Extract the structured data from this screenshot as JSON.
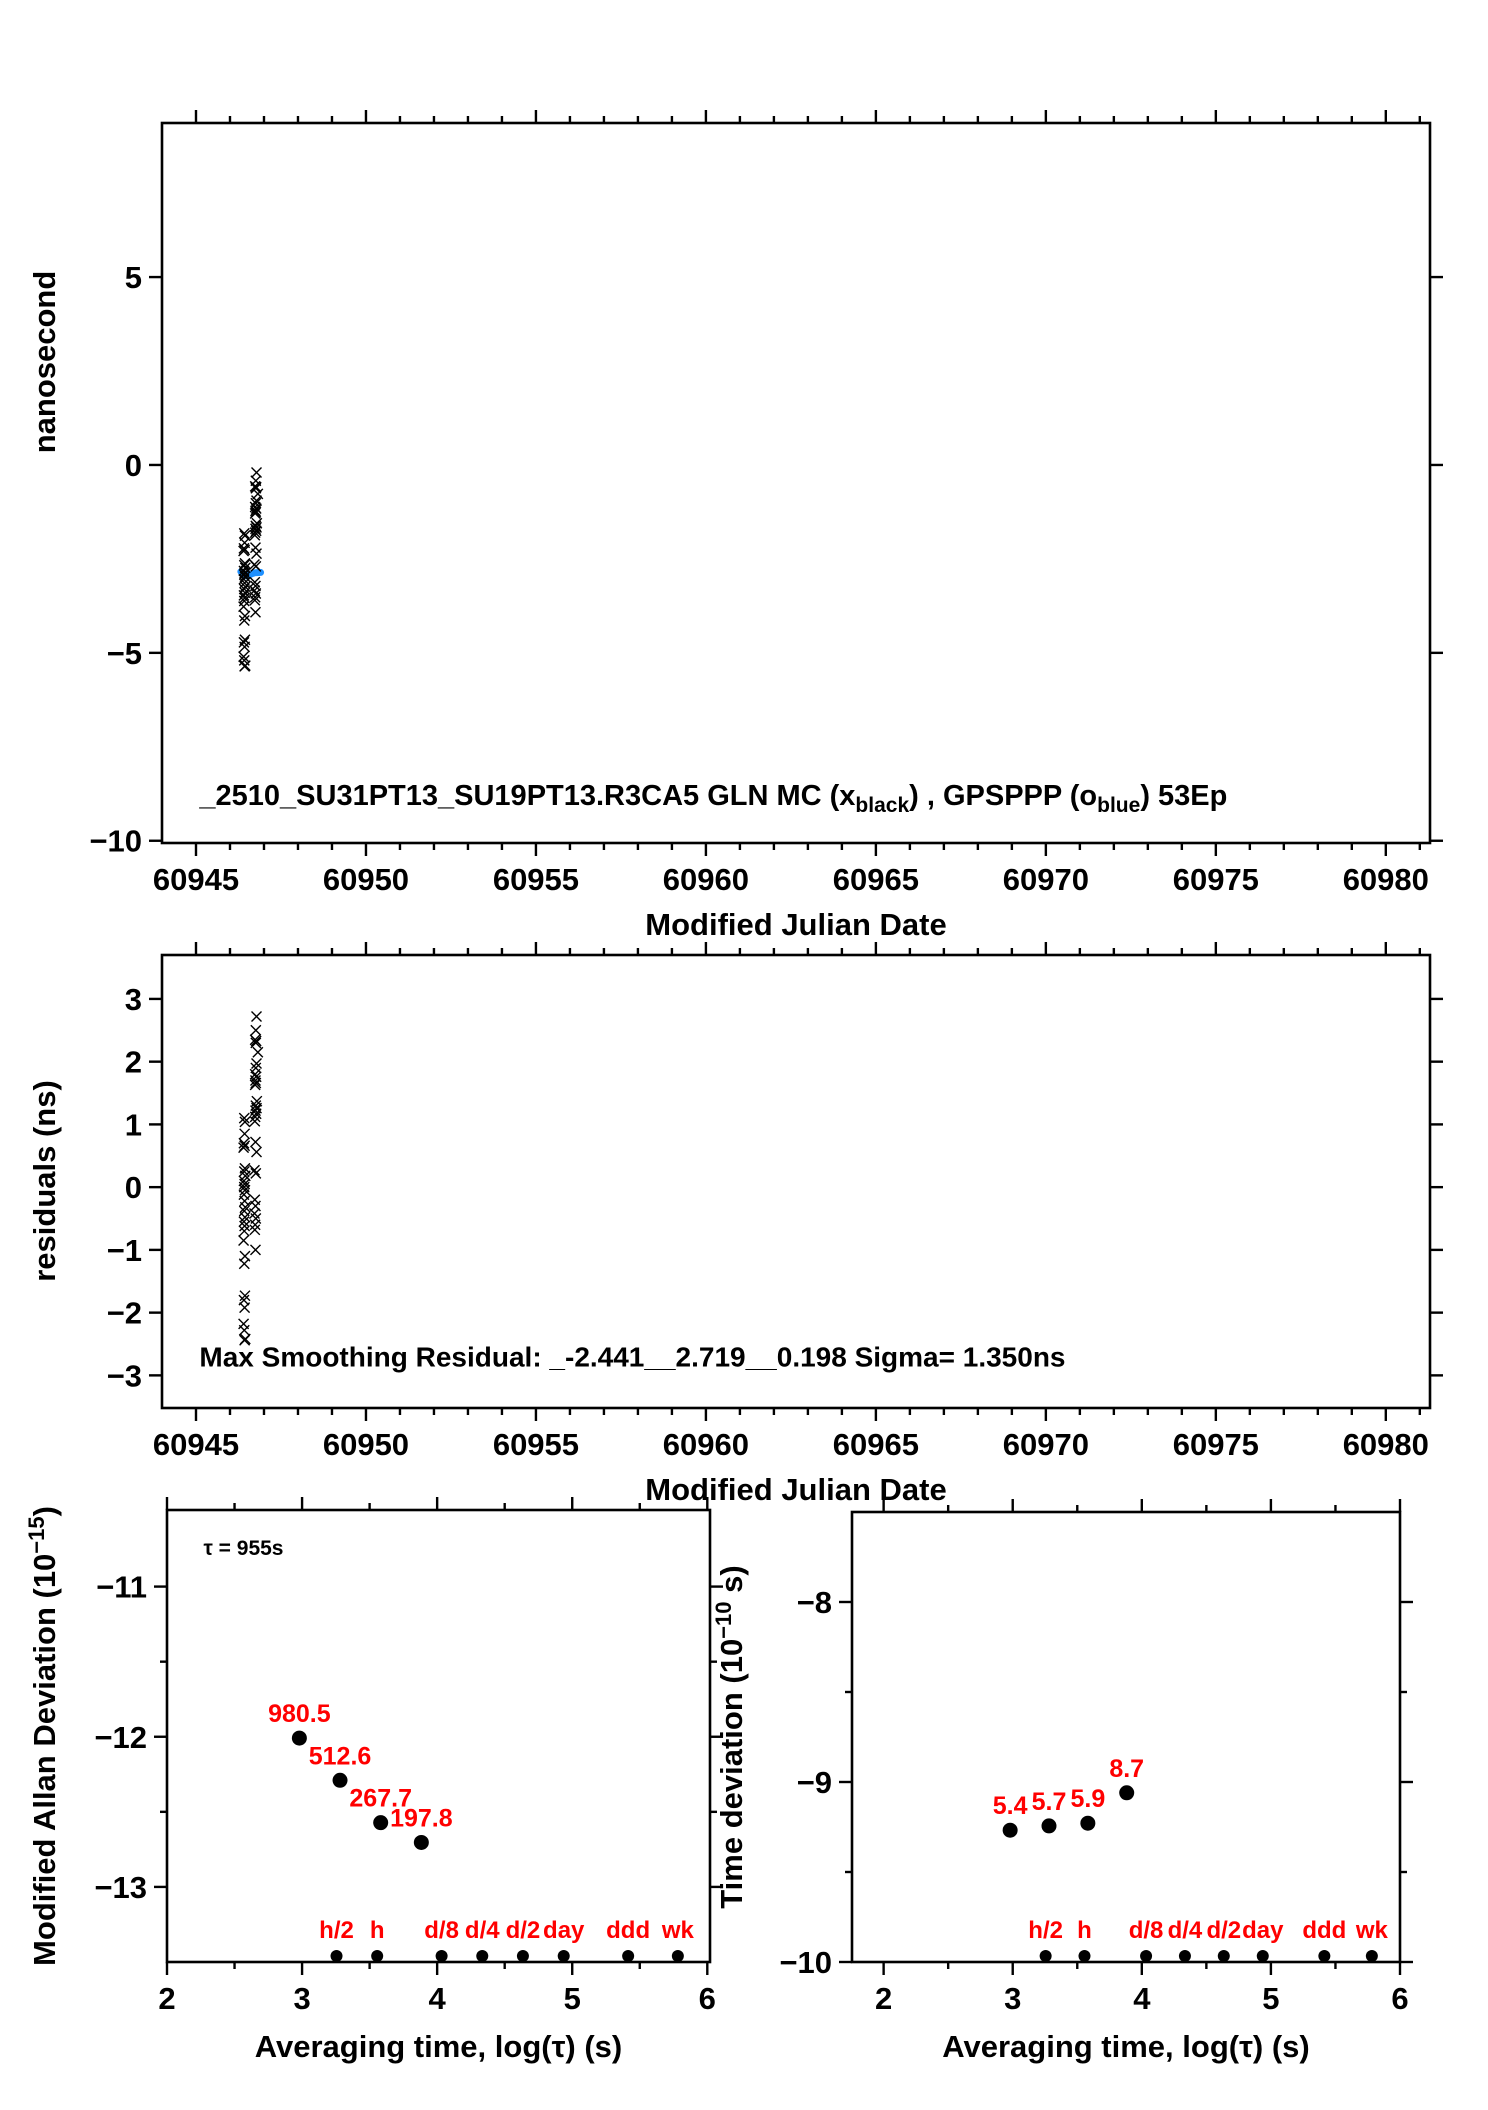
{
  "page": {
    "background": "#ffffff"
  },
  "colors": {
    "marker": "#000000",
    "smooth": "#1E90FF",
    "red": "#FF0000",
    "axis": "#000000"
  },
  "chart_data": [
    {
      "id": "phase",
      "type": "scatter",
      "marker": "x",
      "xlabel": "Modified Julian Date",
      "ylabel_parts": [
        {
          "t": "nanosecond"
        }
      ],
      "xlim": [
        60944.0,
        60981.3
      ],
      "ylim": [
        -10.06,
        9.1
      ],
      "xticks": [
        60945,
        60950,
        60955,
        60960,
        60965,
        60970,
        60975,
        60980
      ],
      "xminor_step": 1,
      "yticks": [
        -10,
        -5,
        0,
        5
      ],
      "title_annotation": {
        "x": 60945.1,
        "y": -9.05,
        "size": 29,
        "parts": [
          {
            "t": "_2510_SU31PT13_SU19PT13.R3CA5     GLN MC (x"
          },
          {
            "sub": "black"
          },
          {
            "t": ") ,  GPSPPP (o"
          },
          {
            "sub": "blue"
          },
          {
            "t": ")  53Ep"
          }
        ]
      },
      "smooth_line": {
        "points": [
          [
            60946.32,
            -2.84
          ],
          [
            60946.42,
            -2.92
          ],
          [
            60946.52,
            -2.96
          ],
          [
            60946.62,
            -2.9
          ],
          [
            60946.72,
            -2.87
          ],
          [
            60946.9,
            -2.86
          ]
        ]
      },
      "points": [
        [
          60946.78,
          -0.2
        ],
        [
          60946.76,
          -0.42
        ],
        [
          60946.74,
          -0.57
        ],
        [
          60946.77,
          -0.59
        ],
        [
          60946.76,
          -0.62
        ],
        [
          60946.82,
          -0.77
        ],
        [
          60946.78,
          -0.95
        ],
        [
          60946.76,
          -1.02
        ],
        [
          60946.74,
          -1.12
        ],
        [
          60946.77,
          -1.16
        ],
        [
          60946.75,
          -1.22
        ],
        [
          60946.76,
          -1.26
        ],
        [
          60946.74,
          -1.29
        ],
        [
          60946.79,
          -1.55
        ],
        [
          60946.76,
          -1.62
        ],
        [
          60946.78,
          -1.66
        ],
        [
          60946.75,
          -1.7
        ],
        [
          60946.77,
          -1.75
        ],
        [
          60946.74,
          -1.8
        ],
        [
          60946.73,
          -1.87
        ],
        [
          60946.75,
          -2.2
        ],
        [
          60946.78,
          -2.36
        ],
        [
          60946.72,
          -2.65
        ],
        [
          60946.76,
          -2.7
        ],
        [
          60946.73,
          -3.12
        ],
        [
          60946.75,
          -3.22
        ],
        [
          60946.72,
          -3.34
        ],
        [
          60946.76,
          -3.42
        ],
        [
          60946.74,
          -3.52
        ],
        [
          60946.73,
          -3.6
        ],
        [
          60946.75,
          -3.92
        ],
        [
          60946.42,
          -1.82
        ],
        [
          60946.44,
          -1.88
        ],
        [
          60946.43,
          -2.07
        ],
        [
          60946.41,
          -2.22
        ],
        [
          60946.43,
          -2.26
        ],
        [
          60946.4,
          -2.29
        ],
        [
          60946.44,
          -2.62
        ],
        [
          60946.42,
          -2.67
        ],
        [
          60946.45,
          -2.74
        ],
        [
          60946.41,
          -2.82
        ],
        [
          60946.43,
          -2.87
        ],
        [
          60946.42,
          -2.92
        ],
        [
          60946.44,
          -2.97
        ],
        [
          60946.41,
          -3.04
        ],
        [
          60946.43,
          -3.14
        ],
        [
          60946.45,
          -3.24
        ],
        [
          60946.42,
          -3.3
        ],
        [
          60946.44,
          -3.4
        ],
        [
          60946.41,
          -3.47
        ],
        [
          60946.43,
          -3.54
        ],
        [
          60946.42,
          -3.62
        ],
        [
          60946.4,
          -3.77
        ],
        [
          60946.44,
          -4.02
        ],
        [
          60946.42,
          -4.14
        ],
        [
          60946.44,
          -4.65
        ],
        [
          60946.41,
          -4.72
        ],
        [
          60946.43,
          -4.84
        ],
        [
          60946.4,
          -5.1
        ],
        [
          60946.42,
          -5.2
        ],
        [
          60946.45,
          -5.34
        ],
        [
          60946.43,
          -5.36
        ]
      ]
    },
    {
      "id": "residuals",
      "type": "scatter",
      "marker": "x",
      "xlabel": "Modified Julian Date",
      "ylabel_parts": [
        {
          "t": "residuals (ns)"
        }
      ],
      "xlim": [
        60944.0,
        60981.3
      ],
      "ylim": [
        -3.52,
        3.7
      ],
      "xticks": [
        60945,
        60950,
        60955,
        60960,
        60965,
        60970,
        60975,
        60980
      ],
      "xminor_step": 1,
      "yticks": [
        -3,
        -2,
        -1,
        0,
        1,
        2,
        3
      ],
      "annotation": {
        "text": "Max Smoothing Residual: _-2.441__2.719__0.198  Sigma= 1.350ns",
        "x": 60945.1,
        "y": -2.86,
        "size": 28
      },
      "points": [
        [
          60946.78,
          2.72
        ],
        [
          60946.76,
          2.5
        ],
        [
          60946.74,
          2.35
        ],
        [
          60946.77,
          2.33
        ],
        [
          60946.76,
          2.3
        ],
        [
          60946.82,
          2.15
        ],
        [
          60946.78,
          1.97
        ],
        [
          60946.76,
          1.9
        ],
        [
          60946.74,
          1.8
        ],
        [
          60946.77,
          1.76
        ],
        [
          60946.75,
          1.7
        ],
        [
          60946.76,
          1.66
        ],
        [
          60946.74,
          1.63
        ],
        [
          60946.79,
          1.37
        ],
        [
          60946.76,
          1.3
        ],
        [
          60946.78,
          1.26
        ],
        [
          60946.75,
          1.22
        ],
        [
          60946.77,
          1.17
        ],
        [
          60946.74,
          1.12
        ],
        [
          60946.73,
          1.05
        ],
        [
          60946.75,
          0.72
        ],
        [
          60946.78,
          0.56
        ],
        [
          60946.72,
          0.27
        ],
        [
          60946.76,
          0.22
        ],
        [
          60946.73,
          -0.2
        ],
        [
          60946.75,
          -0.3
        ],
        [
          60946.72,
          -0.42
        ],
        [
          60946.76,
          -0.5
        ],
        [
          60946.74,
          -0.6
        ],
        [
          60946.73,
          -0.68
        ],
        [
          60946.75,
          -1.0
        ],
        [
          60946.42,
          1.1
        ],
        [
          60946.44,
          1.04
        ],
        [
          60946.43,
          0.85
        ],
        [
          60946.41,
          0.7
        ],
        [
          60946.43,
          0.66
        ],
        [
          60946.4,
          0.63
        ],
        [
          60946.44,
          0.3
        ],
        [
          60946.42,
          0.25
        ],
        [
          60946.45,
          0.18
        ],
        [
          60946.41,
          0.1
        ],
        [
          60946.43,
          0.05
        ],
        [
          60946.42,
          0.0
        ],
        [
          60946.44,
          -0.05
        ],
        [
          60946.41,
          -0.12
        ],
        [
          60946.43,
          -0.22
        ],
        [
          60946.45,
          -0.32
        ],
        [
          60946.42,
          -0.38
        ],
        [
          60946.44,
          -0.48
        ],
        [
          60946.41,
          -0.55
        ],
        [
          60946.43,
          -0.62
        ],
        [
          60946.42,
          -0.7
        ],
        [
          60946.4,
          -0.85
        ],
        [
          60946.44,
          -1.1
        ],
        [
          60946.42,
          -1.22
        ],
        [
          60946.44,
          -1.73
        ],
        [
          60946.41,
          -1.8
        ],
        [
          60946.43,
          -1.92
        ],
        [
          60946.4,
          -2.18
        ],
        [
          60946.42,
          -2.28
        ],
        [
          60946.45,
          -2.42
        ],
        [
          60946.43,
          -2.44
        ]
      ]
    },
    {
      "id": "mdev",
      "type": "scatter",
      "marker": "dot",
      "xlabel": "Averaging time, log(τ) (s)",
      "ylabel_parts": [
        {
          "t": "Modified Allan Deviation (10"
        },
        {
          "sup": "-15"
        },
        {
          "t": ")"
        }
      ],
      "xlim": [
        2.0,
        6.02
      ],
      "ylim": [
        -13.5,
        -10.49
      ],
      "xticks": [
        2,
        3,
        4,
        5,
        6
      ],
      "xminor_step": 0.5,
      "yticks": [
        -11,
        -12,
        -13
      ],
      "yminor_step": 0.5,
      "annotation": {
        "text": "τ = 955s",
        "x": 2.27,
        "y": -10.79,
        "size": 21
      },
      "labeled_points": [
        {
          "x": 2.98,
          "y": -12.009,
          "label": "980.5"
        },
        {
          "x": 3.281,
          "y": -12.29,
          "label": "512.6"
        },
        {
          "x": 3.582,
          "y": -12.572,
          "label": "267.7"
        },
        {
          "x": 3.883,
          "y": -12.704,
          "label": "197.8"
        }
      ],
      "tau_markers": [
        {
          "label": "h/2",
          "x": 3.255
        },
        {
          "label": "h",
          "x": 3.556
        },
        {
          "label": "d/8",
          "x": 4.033
        },
        {
          "label": "d/4",
          "x": 4.334
        },
        {
          "label": "d/2",
          "x": 4.635
        },
        {
          "label": "day",
          "x": 4.937
        },
        {
          "label": "ddd",
          "x": 5.414
        },
        {
          "label": "wk",
          "x": 5.782
        }
      ]
    },
    {
      "id": "tdev",
      "type": "scatter",
      "marker": "dot",
      "xlabel": "Averaging time, log(τ) (s)",
      "ylabel_parts": [
        {
          "t": "Time deviation (10"
        },
        {
          "sup": "-10"
        },
        {
          "t": " s)"
        }
      ],
      "xlim": [
        1.755,
        6.0
      ],
      "ylim": [
        -10.0,
        -7.5
      ],
      "xticks": [
        2,
        3,
        4,
        5,
        6
      ],
      "xminor_step": 0.5,
      "yticks": [
        -8,
        -9,
        -10
      ],
      "yminor_step": 0.5,
      "labeled_points": [
        {
          "x": 2.98,
          "y": -9.268,
          "label": "5.4"
        },
        {
          "x": 3.281,
          "y": -9.244,
          "label": "5.7"
        },
        {
          "x": 3.582,
          "y": -9.229,
          "label": "5.9"
        },
        {
          "x": 3.883,
          "y": -9.06,
          "label": "8.7"
        }
      ],
      "tau_markers": [
        {
          "label": "h/2",
          "x": 3.255
        },
        {
          "label": "h",
          "x": 3.556
        },
        {
          "label": "d/8",
          "x": 4.033
        },
        {
          "label": "d/4",
          "x": 4.334
        },
        {
          "label": "d/2",
          "x": 4.635
        },
        {
          "label": "day",
          "x": 4.937
        },
        {
          "label": "ddd",
          "x": 5.414
        },
        {
          "label": "wk",
          "x": 5.782
        }
      ]
    }
  ]
}
